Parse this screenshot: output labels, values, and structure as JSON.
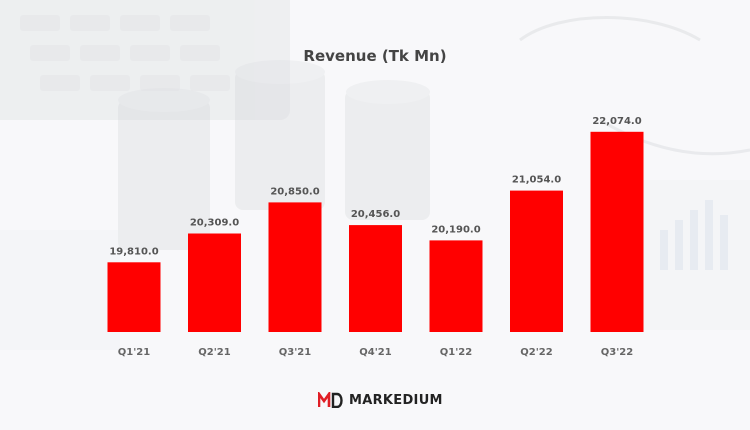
{
  "brand": {
    "name": "MARKEDIUM",
    "logo_icon": "markedium-md-logo-icon",
    "logo_color": "#e01e25"
  },
  "colors": {
    "bar": "#ff0000",
    "label": "#555555"
  },
  "chart_data": {
    "type": "bar",
    "title": "Revenue (Tk Mn)",
    "xlabel": "",
    "ylabel": "",
    "categories": [
      "Q1'21",
      "Q2'21",
      "Q3'21",
      "Q4'21",
      "Q1'22",
      "Q2'22",
      "Q3'22"
    ],
    "values": [
      19810.0,
      20309.0,
      20850.0,
      20456.0,
      20190.0,
      21054.0,
      22074.0
    ],
    "data_labels": [
      "19,810.0",
      "20,309.0",
      "20,850.0",
      "20,456.0",
      "20,190.0",
      "21,054.0",
      "22,074.0"
    ],
    "ylim": [
      18600,
      22800
    ],
    "grid": false,
    "legend": "none"
  }
}
